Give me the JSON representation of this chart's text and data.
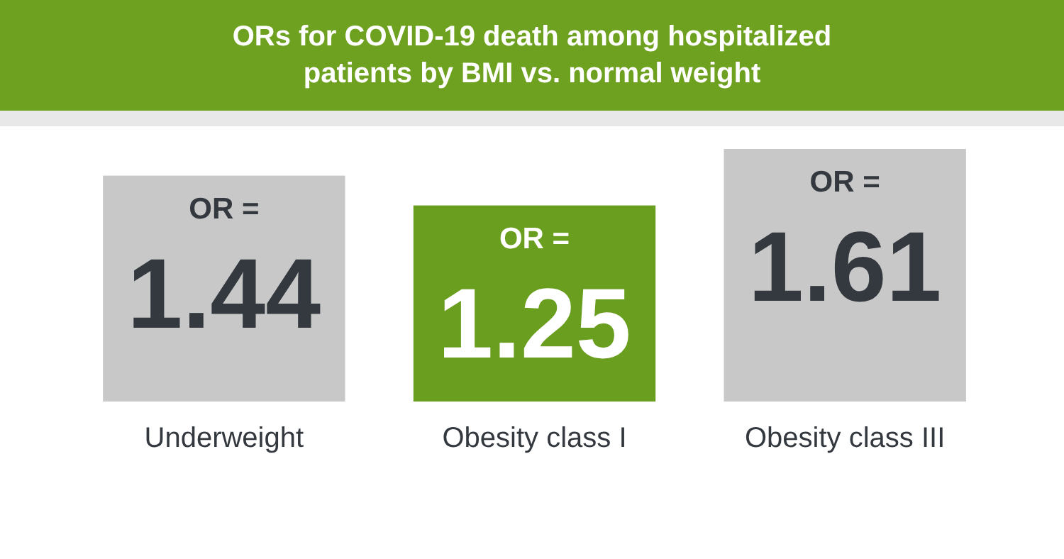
{
  "chart_data": {
    "type": "bar",
    "title": "ORs for COVID-19 death among hospitalized patients by BMI vs. normal weight",
    "categories": [
      "Underweight",
      "Obesity class I",
      "Obesity class III"
    ],
    "values": [
      1.44,
      1.25,
      1.61
    ],
    "colors": [
      "#c8c8c8",
      "#6a9e1f",
      "#c8c8c8"
    ],
    "value_labels": [
      "OR = 1.44",
      "OR = 1.25",
      "OR = 1.61"
    ],
    "relative": false
  }
}
